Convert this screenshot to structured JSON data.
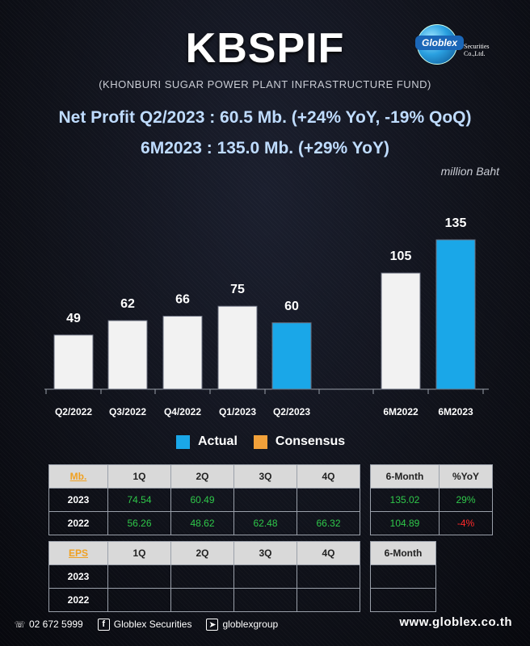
{
  "header": {
    "title": "KBSPIF",
    "subtitle": "(KHONBURI SUGAR POWER PLANT INFRASTRUCTURE FUND)",
    "logo_text": "Globlex",
    "logo_suffix": "Securities Co.,Ltd."
  },
  "headline": {
    "line1": "Net Profit  Q2/2023 : 60.5 Mb. (+24% YoY, -19% QoQ)",
    "line2": "6M2023 : 135.0 Mb. (+29% YoY)",
    "unit": "million Baht"
  },
  "colors": {
    "actual": "#1aa7e8",
    "consensus": "#f2a13a",
    "past": "#f2f2f2",
    "positive": "#2fc84a",
    "negative": "#ff2a2a"
  },
  "chart_data": {
    "type": "bar",
    "categories": [
      "Q2/2022",
      "Q3/2022",
      "Q4/2022",
      "Q1/2023",
      "Q2/2023",
      "6M2022",
      "6M2023"
    ],
    "values": [
      49,
      62,
      66,
      75,
      60,
      105,
      135
    ],
    "labels": [
      "49",
      "62",
      "66",
      "75",
      "60",
      "105",
      "135"
    ],
    "highlight": [
      false,
      false,
      false,
      false,
      true,
      false,
      true
    ],
    "legend": [
      "Actual",
      "Consensus"
    ],
    "ylim": [
      0,
      145
    ]
  },
  "legend": {
    "actual": "Actual",
    "consensus": "Consensus"
  },
  "mb_table": {
    "header": [
      "Mb.",
      "1Q",
      "2Q",
      "3Q",
      "4Q"
    ],
    "rows": [
      {
        "label": "2023",
        "cells": [
          "74.54",
          "60.49",
          "",
          ""
        ]
      },
      {
        "label": "2022",
        "cells": [
          "56.26",
          "48.62",
          "62.48",
          "66.32"
        ]
      }
    ]
  },
  "mb_side": {
    "header": [
      "6-Month",
      "%YoY"
    ],
    "rows": [
      {
        "six": "135.02",
        "yoy": "29%"
      },
      {
        "six": "104.89",
        "yoy": "-4%"
      }
    ]
  },
  "eps_table": {
    "header": [
      "EPS",
      "1Q",
      "2Q",
      "3Q",
      "4Q"
    ],
    "rows": [
      {
        "label": "2023"
      },
      {
        "label": "2022"
      }
    ]
  },
  "eps_side": {
    "header": "6-Month"
  },
  "footer": {
    "phone": "02 672 5999",
    "facebook": "Globlex Securities",
    "telegram": "globlexgroup",
    "website": "www.globlex.co.th"
  }
}
